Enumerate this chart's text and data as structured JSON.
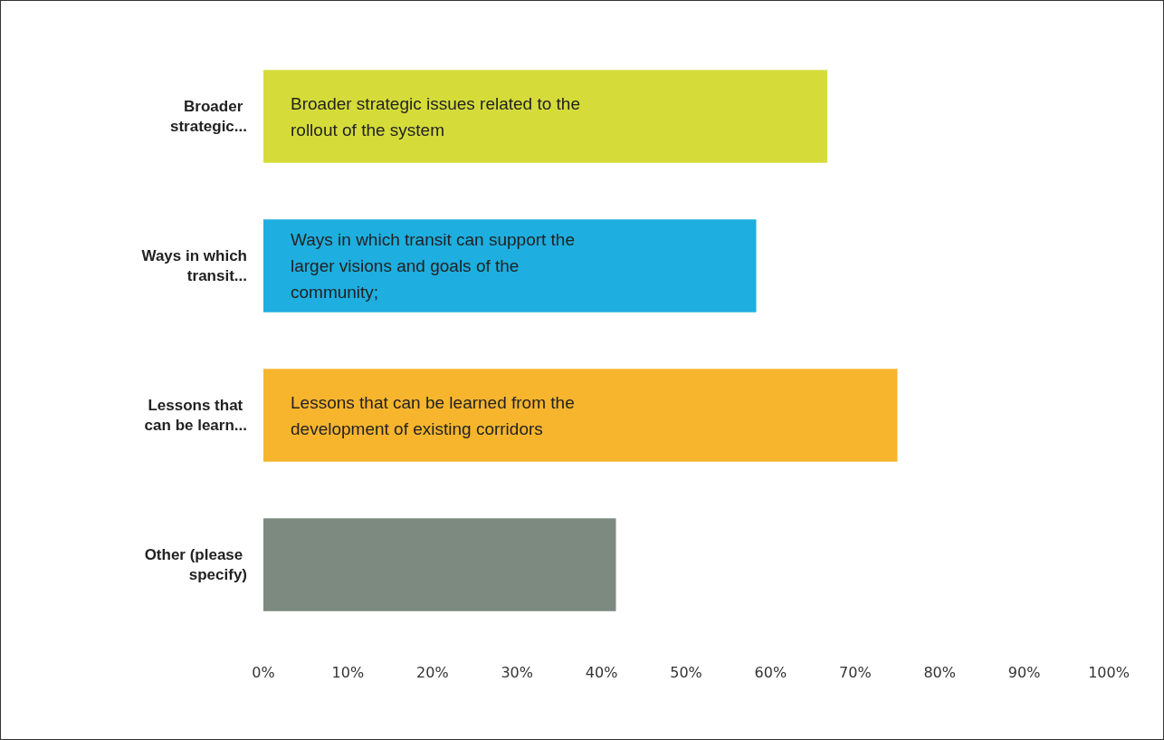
{
  "chart_data": {
    "type": "bar",
    "orientation": "horizontal",
    "categories": [
      "Broader strategic...",
      "Ways in which transit...",
      "Lessons that can be learn...",
      "Other (please specify)"
    ],
    "values": [
      66.7,
      58.3,
      75.0,
      41.7
    ],
    "colors": [
      "#d5dc3a",
      "#1eaee0",
      "#f7b52e",
      "#7c8a80"
    ],
    "xlim": [
      0,
      100
    ],
    "xticks": [
      {
        "value": 0,
        "label": "0%"
      },
      {
        "value": 10,
        "label": "10%"
      },
      {
        "value": 20,
        "label": "20%"
      },
      {
        "value": 30,
        "label": "30%"
      },
      {
        "value": 40,
        "label": "40%"
      },
      {
        "value": 50,
        "label": "50%"
      },
      {
        "value": 60,
        "label": "60%"
      },
      {
        "value": 70,
        "label": "70%"
      },
      {
        "value": 80,
        "label": "80%"
      },
      {
        "value": 90,
        "label": "90%"
      },
      {
        "value": 100,
        "label": "100%"
      }
    ],
    "annotations": [
      "Broader strategic issues related to the rollout of the system",
      "Ways in which transit can support the larger visions and goals of the community;",
      "Lessons that can be learned from the development of existing corridors"
    ]
  }
}
